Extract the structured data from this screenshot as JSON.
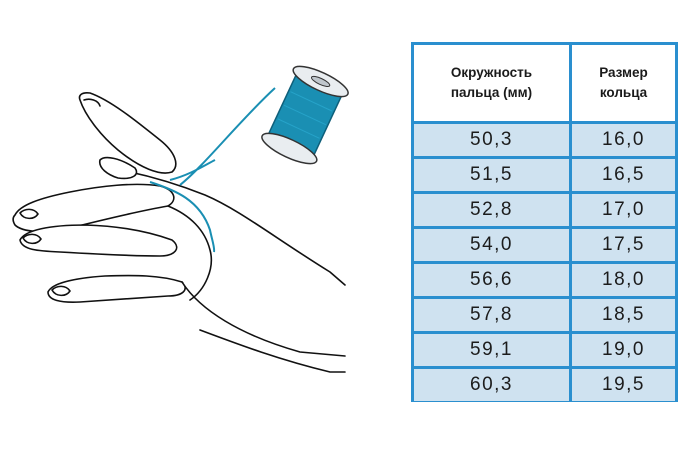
{
  "colors": {
    "table_border": "#2a8fcf",
    "row_fill": "#cfe2f0",
    "thread": "#1a8fb3"
  },
  "illustration": {
    "subject": "hand-measuring-finger-with-thread",
    "icons": [
      "hand-icon",
      "thread-spool-icon"
    ]
  },
  "table": {
    "headers": [
      "Окружность\nпальца (мм)",
      "Размер\nкольца"
    ],
    "rows": [
      [
        "50,3",
        "16,0"
      ],
      [
        "51,5",
        "16,5"
      ],
      [
        "52,8",
        "17,0"
      ],
      [
        "54,0",
        "17,5"
      ],
      [
        "56,6",
        "18,0"
      ],
      [
        "57,8",
        "18,5"
      ],
      [
        "59,1",
        "19,0"
      ],
      [
        "60,3",
        "19,5"
      ]
    ]
  }
}
